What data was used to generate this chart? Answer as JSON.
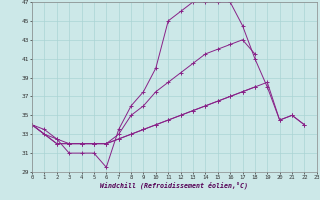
{
  "xlabel": "Windchill (Refroidissement éolien,°C)",
  "bg_color": "#cce8e8",
  "grid_color": "#aad4d4",
  "line_color": "#882288",
  "xmin": 0,
  "xmax": 23,
  "ymin": 29,
  "ymax": 47,
  "yticks": [
    29,
    31,
    33,
    35,
    37,
    39,
    41,
    43,
    45,
    47
  ],
  "xticks": [
    0,
    1,
    2,
    3,
    4,
    5,
    6,
    7,
    8,
    9,
    10,
    11,
    12,
    13,
    14,
    15,
    16,
    17,
    18,
    19,
    20,
    21,
    22,
    23
  ],
  "series": [
    [
      [
        0,
        34.0
      ],
      [
        1,
        33.0
      ],
      [
        2,
        32.5
      ],
      [
        3,
        31.0
      ],
      [
        4,
        31.0
      ],
      [
        5,
        31.0
      ],
      [
        6,
        29.5
      ],
      [
        7,
        33.5
      ],
      [
        8,
        36.0
      ],
      [
        9,
        37.5
      ],
      [
        10,
        40.0
      ],
      [
        11,
        45.0
      ],
      [
        12,
        46.0
      ],
      [
        13,
        47.0
      ],
      [
        14,
        47.0
      ],
      [
        15,
        47.0
      ],
      [
        16,
        47.0
      ],
      [
        17,
        44.5
      ],
      [
        18,
        41.0
      ],
      [
        19,
        38.0
      ],
      [
        20,
        34.5
      ],
      [
        21,
        35.0
      ],
      [
        22,
        34.0
      ]
    ],
    [
      [
        0,
        34.0
      ],
      [
        1,
        33.5
      ],
      [
        2,
        32.5
      ],
      [
        3,
        32.0
      ],
      [
        4,
        32.0
      ],
      [
        5,
        32.0
      ],
      [
        6,
        32.0
      ],
      [
        7,
        33.0
      ],
      [
        8,
        35.0
      ],
      [
        9,
        36.0
      ],
      [
        10,
        37.5
      ],
      [
        11,
        38.5
      ],
      [
        12,
        39.5
      ],
      [
        13,
        40.5
      ],
      [
        14,
        41.5
      ],
      [
        15,
        42.0
      ],
      [
        16,
        42.5
      ],
      [
        17,
        43.0
      ],
      [
        18,
        41.5
      ]
    ],
    [
      [
        0,
        34.0
      ],
      [
        2,
        32.0
      ],
      [
        3,
        32.0
      ],
      [
        4,
        32.0
      ],
      [
        5,
        32.0
      ],
      [
        6,
        32.0
      ],
      [
        7,
        32.5
      ],
      [
        8,
        33.0
      ],
      [
        9,
        33.5
      ],
      [
        10,
        34.0
      ],
      [
        11,
        34.5
      ],
      [
        12,
        35.0
      ],
      [
        13,
        35.5
      ],
      [
        14,
        36.0
      ],
      [
        15,
        36.5
      ],
      [
        16,
        37.0
      ],
      [
        17,
        37.5
      ],
      [
        18,
        38.0
      ],
      [
        19,
        38.5
      ],
      [
        20,
        34.5
      ],
      [
        21,
        35.0
      ],
      [
        22,
        34.0
      ]
    ],
    [
      [
        0,
        34.0
      ],
      [
        2,
        32.0
      ],
      [
        3,
        32.0
      ],
      [
        4,
        32.0
      ],
      [
        5,
        32.0
      ],
      [
        6,
        32.0
      ],
      [
        7,
        32.5
      ],
      [
        8,
        33.0
      ],
      [
        9,
        33.5
      ],
      [
        10,
        34.0
      ],
      [
        11,
        34.5
      ],
      [
        12,
        35.0
      ],
      [
        13,
        35.5
      ],
      [
        14,
        36.0
      ],
      [
        15,
        36.5
      ],
      [
        16,
        37.0
      ],
      [
        17,
        37.5
      ],
      [
        18,
        38.0
      ]
    ]
  ]
}
